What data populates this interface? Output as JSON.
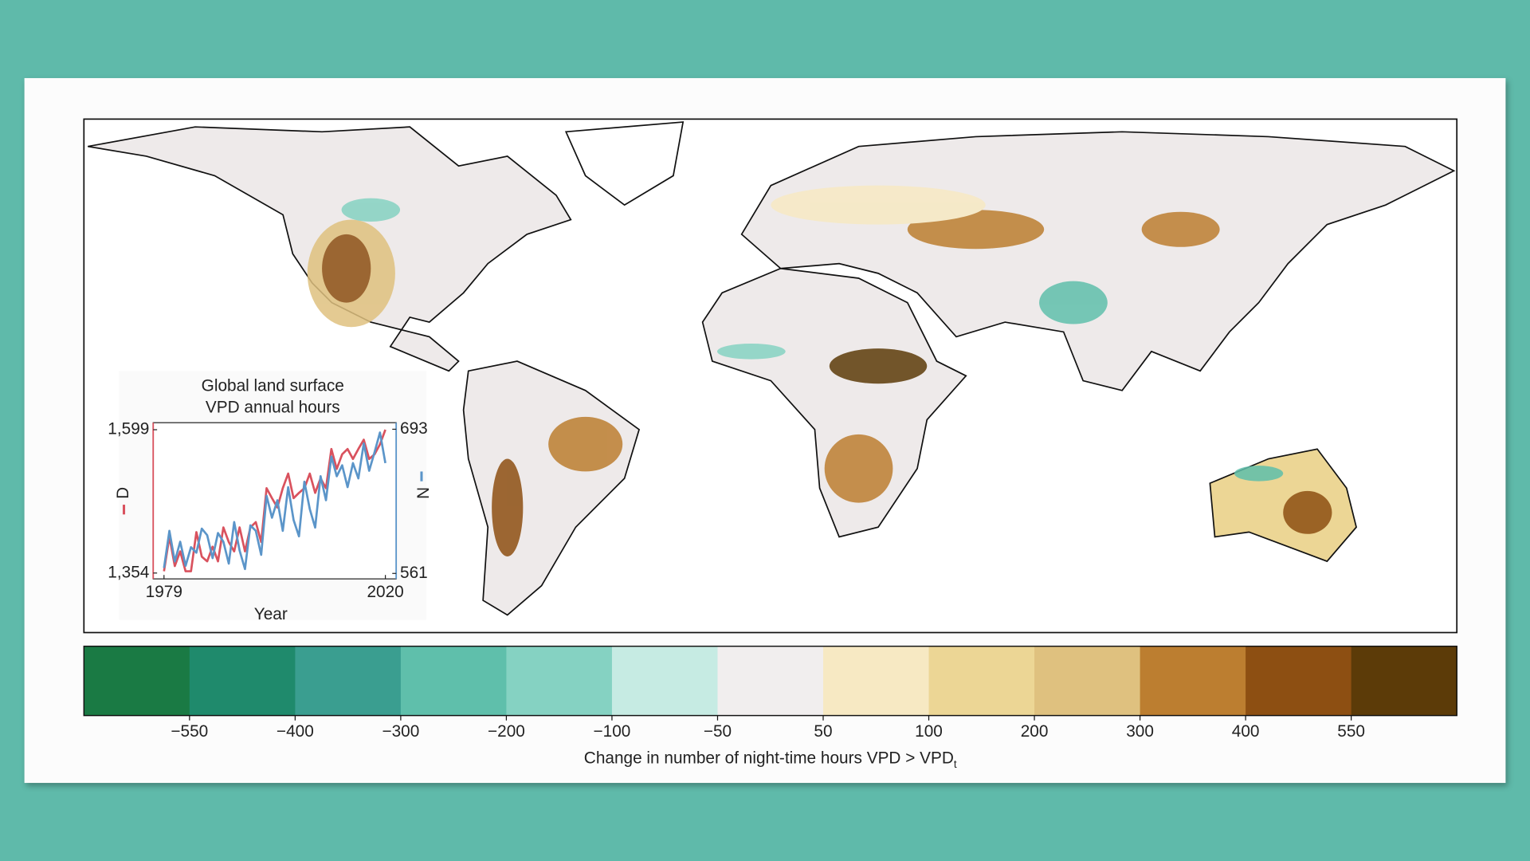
{
  "colorbar": {
    "colors": [
      "#1a7a44",
      "#1f8a6c",
      "#3a9e90",
      "#5fbfab",
      "#85d2c2",
      "#c6ebe3",
      "#f1eeee",
      "#f7e9c3",
      "#ecd695",
      "#dfc17f",
      "#bc7e30",
      "#8d4f12",
      "#5c3b08"
    ],
    "ticks": [
      {
        "value": -550,
        "label": "−550"
      },
      {
        "value": -400,
        "label": "−400"
      },
      {
        "value": -300,
        "label": "−300"
      },
      {
        "value": -200,
        "label": "−200"
      },
      {
        "value": -100,
        "label": "−100"
      },
      {
        "value": -50,
        "label": "−50"
      },
      50,
      100,
      200,
      300,
      400,
      550
    ],
    "label": "Change in number of night-time hours VPD > VPD",
    "label_subscript": "t"
  },
  "chart_data": {
    "type": "line",
    "title": [
      "Global land surface",
      "VPD annual hours"
    ],
    "x_label": "Year",
    "x": [
      1979,
      1980,
      1981,
      1982,
      1983,
      1984,
      1985,
      1986,
      1987,
      1988,
      1989,
      1990,
      1991,
      1992,
      1993,
      1994,
      1995,
      1996,
      1997,
      1998,
      1999,
      2000,
      2001,
      2002,
      2003,
      2004,
      2005,
      2006,
      2007,
      2008,
      2009,
      2010,
      2011,
      2012,
      2013,
      2014,
      2015,
      2016,
      2017,
      2018,
      2019,
      2020
    ],
    "xlim": [
      1977,
      2022
    ],
    "xticks": [
      1979,
      2020
    ],
    "ylim": [
      1344,
      1611
    ],
    "yticks": [
      {
        "value": 1354,
        "label": "1,354"
      },
      {
        "value": 1599,
        "label": "1,599"
      }
    ],
    "y2lim": [
      556,
      699
    ],
    "y2ticks": [
      561,
      693
    ],
    "series": [
      {
        "name": "D",
        "color": "#d9525e",
        "axis": "y",
        "values": [
          1357,
          1416,
          1366,
          1391,
          1357,
          1357,
          1424,
          1382,
          1374,
          1399,
          1374,
          1432,
          1407,
          1391,
          1432,
          1391,
          1432,
          1441,
          1407,
          1499,
          1482,
          1466,
          1499,
          1524,
          1482,
          1491,
          1499,
          1524,
          1491,
          1516,
          1499,
          1566,
          1532,
          1557,
          1566,
          1549,
          1566,
          1582,
          1549,
          1557,
          1574,
          1599
        ]
      },
      {
        "name": "N",
        "color": "#5b95c9",
        "axis": "y2",
        "values": [
          566,
          600,
          572,
          590,
          568,
          585,
          580,
          602,
          596,
          575,
          598,
          590,
          570,
          608,
          582,
          565,
          605,
          600,
          578,
          632,
          612,
          628,
          600,
          640,
          610,
          595,
          645,
          620,
          603,
          650,
          628,
          668,
          650,
          660,
          640,
          662,
          648,
          680,
          655,
          672,
          690,
          662
        ]
      }
    ]
  }
}
